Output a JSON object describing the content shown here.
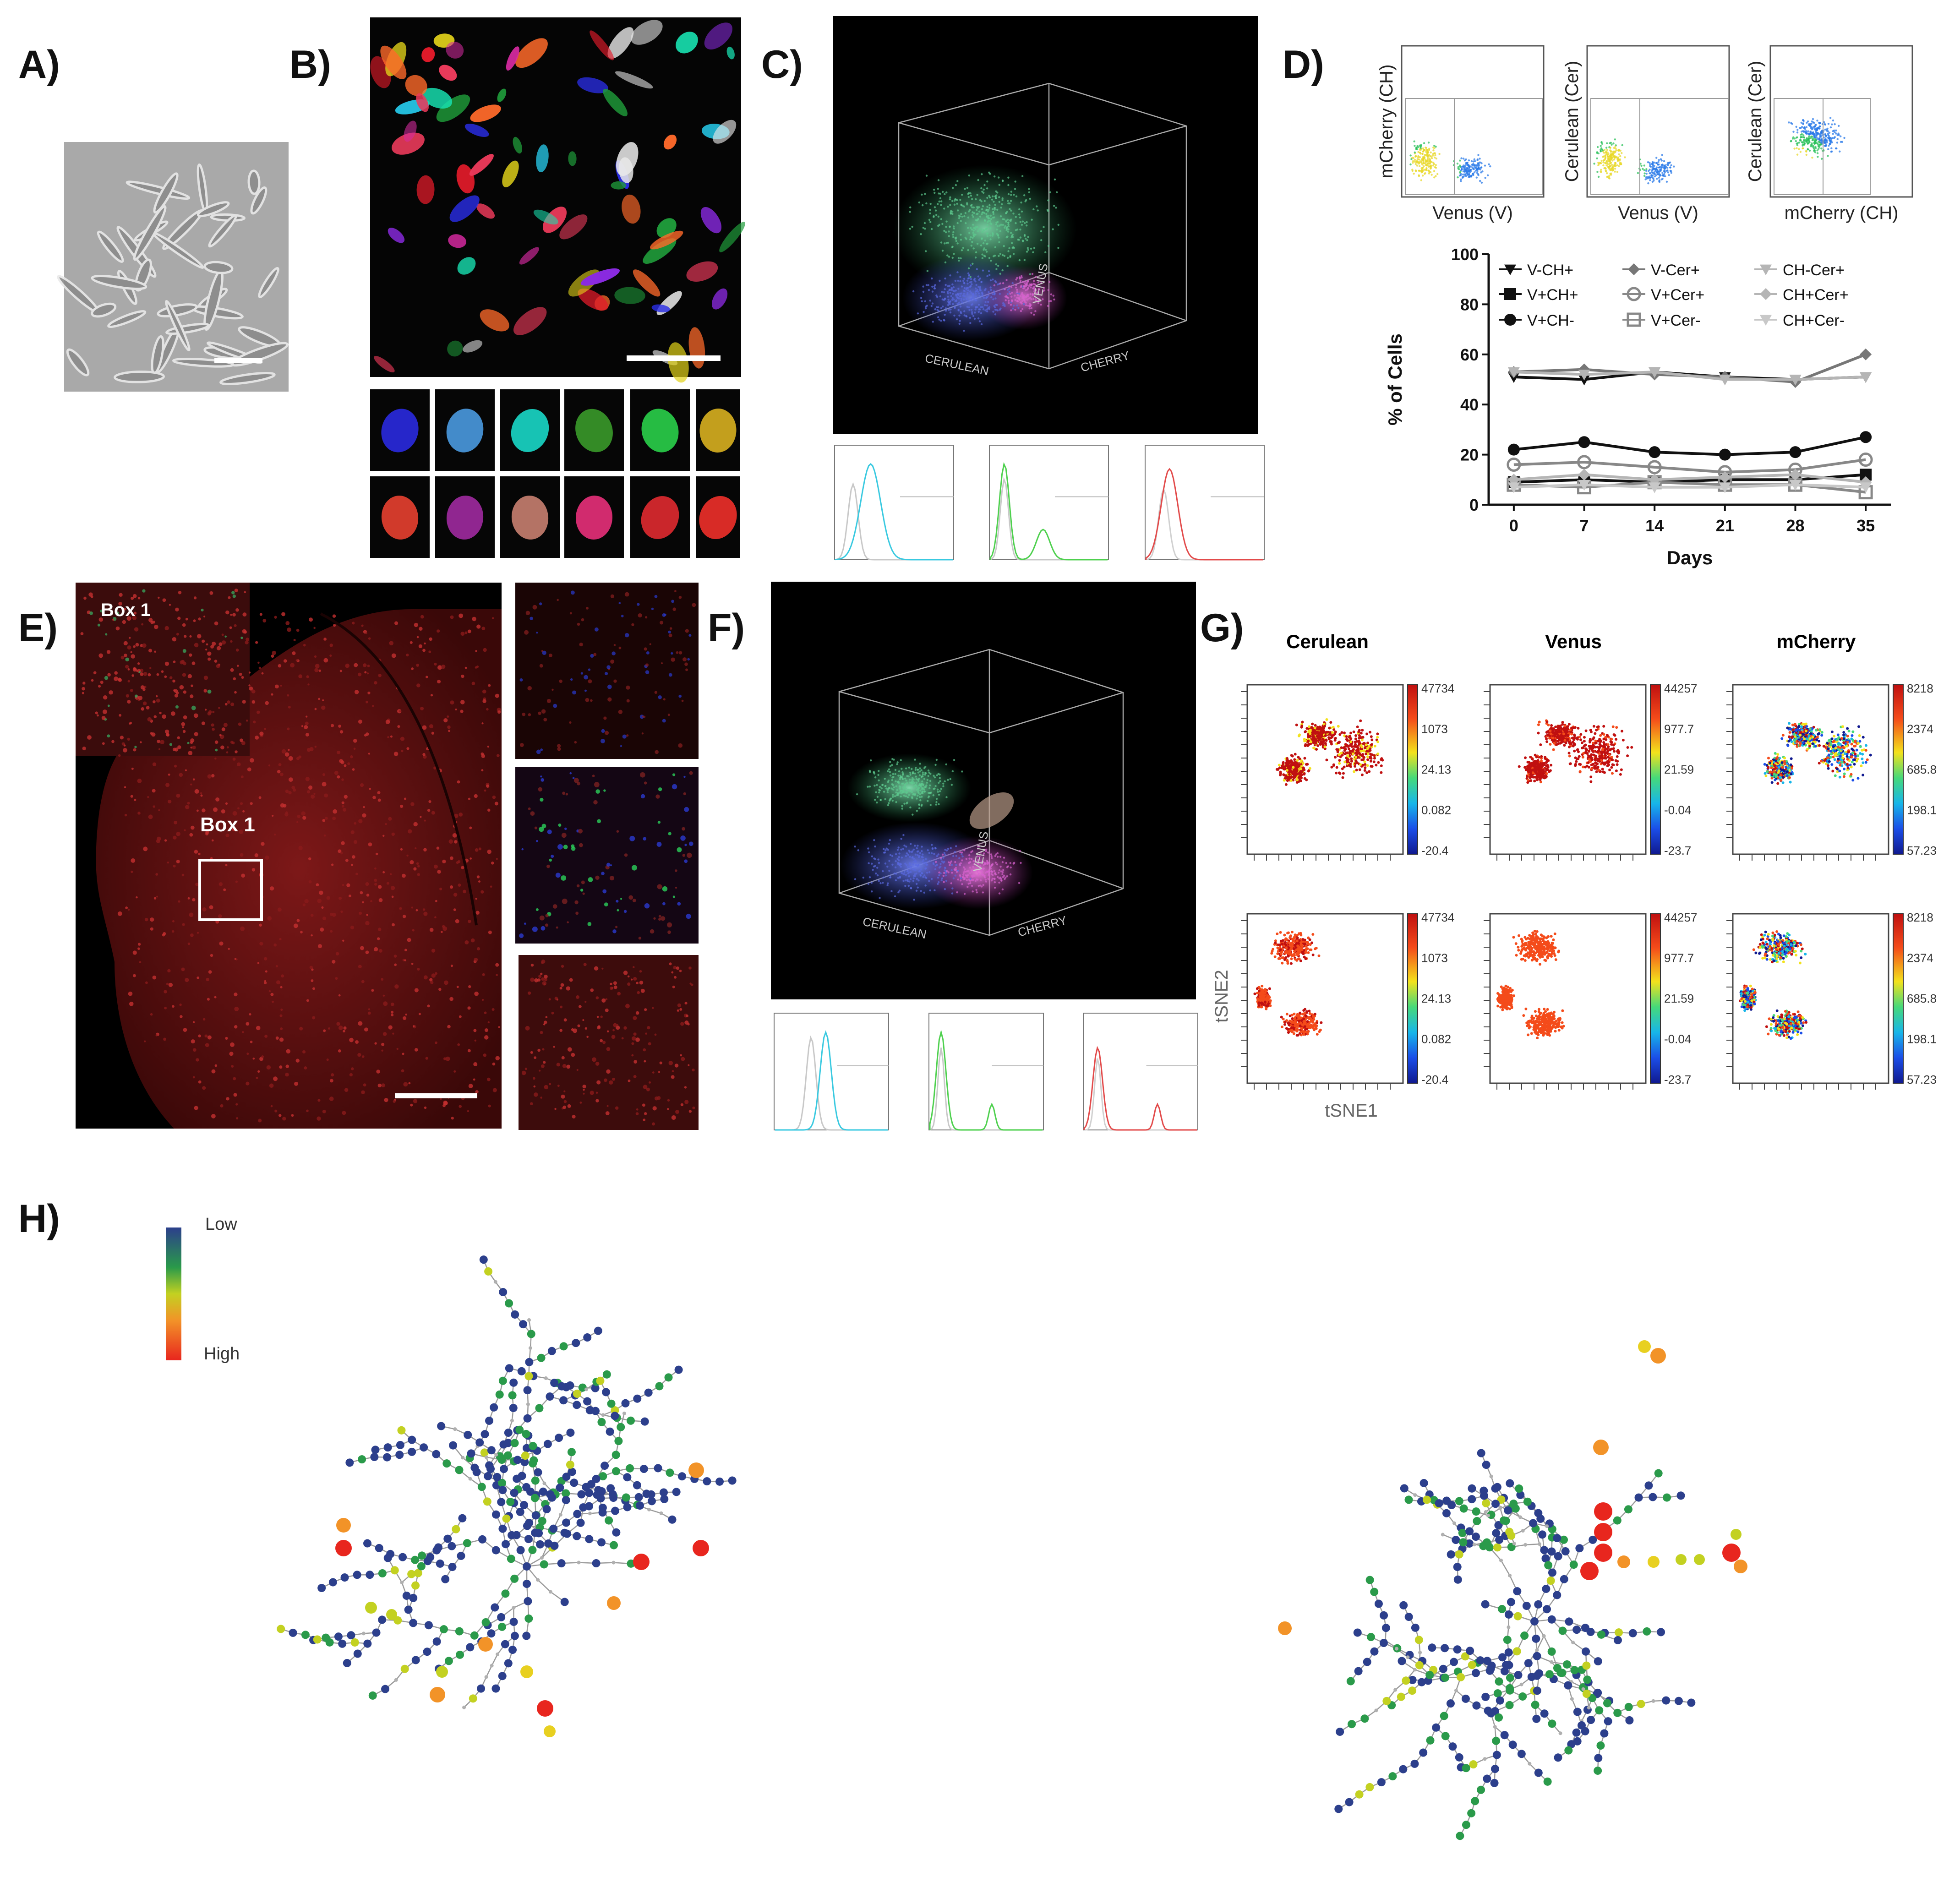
{
  "panel_labels": {
    "a": "A)",
    "b": "B)",
    "c": "C)",
    "d": "D)",
    "e": "E)",
    "f": "F)",
    "g": "G)",
    "h": "H)"
  },
  "panel_c": {
    "axis_cerulean": "CERULEAN",
    "axis_cherry": "CHERRY",
    "axis_venus": "VENUS"
  },
  "panel_f": {
    "axis_cerulean": "CERULEAN",
    "axis_cherry": "CHERRY",
    "axis_venus": "VENUS"
  },
  "panel_d_flow": {
    "plots": [
      {
        "xlabel": "Venus (V)",
        "ylabel": "mCherry (CH)"
      },
      {
        "xlabel": "Venus (V)",
        "ylabel": "Cerulean (Cer)"
      },
      {
        "xlabel": "mCherry (CH)",
        "ylabel": "Cerulean (Cer)"
      }
    ]
  },
  "panel_e": {
    "inset_label": "Box 1",
    "box_label": "Box 1"
  },
  "panel_g": {
    "columns": [
      "Cerulean",
      "Venus",
      "mCherry"
    ],
    "xlabel": "tSNE1",
    "ylabel": "tSNE2",
    "scales": [
      [
        "47734",
        "1073",
        "24.13",
        "0.082",
        "-20.4"
      ],
      [
        "44257",
        "977.7",
        "21.59",
        "-0.04",
        "-23.7"
      ],
      [
        "8218",
        "2374",
        "685.8",
        "198.1",
        "57.23"
      ]
    ]
  },
  "panel_h": {
    "legend_low": "Low",
    "legend_high": "High"
  },
  "colors": {
    "red": "#e8261e",
    "orange": "#f29328",
    "yellow": "#e8d020",
    "green": "#2a9a4a",
    "navy": "#2c3f8c",
    "gray": "#b0b0b0"
  },
  "chart_data": {
    "type": "line",
    "title": "",
    "xlabel": "Days",
    "ylabel": "% of Cells",
    "x": [
      0,
      7,
      14,
      21,
      28,
      35
    ],
    "ylim": [
      0,
      100
    ],
    "yticks": [
      0,
      20,
      40,
      60,
      80,
      100
    ],
    "legend_position": "top",
    "series": [
      {
        "name": "V-CH+",
        "marker": "triangle-down",
        "color": "#111111",
        "values": [
          51,
          50,
          53,
          51,
          50,
          51
        ]
      },
      {
        "name": "V+CH+",
        "marker": "square",
        "color": "#111111",
        "values": [
          9,
          10,
          9,
          10,
          10,
          12
        ]
      },
      {
        "name": "V+CH-",
        "marker": "circle",
        "color": "#111111",
        "values": [
          22,
          25,
          21,
          20,
          21,
          27
        ]
      },
      {
        "name": "V-Cer+",
        "marker": "diamond",
        "color": "#777777",
        "values": [
          53,
          54,
          52,
          51,
          49,
          60
        ]
      },
      {
        "name": "V+Cer+",
        "marker": "open-circle",
        "color": "#888888",
        "values": [
          16,
          17,
          15,
          13,
          14,
          18
        ]
      },
      {
        "name": "V+Cer-",
        "marker": "open-square",
        "color": "#888888",
        "values": [
          8,
          7,
          9,
          8,
          8,
          5
        ]
      },
      {
        "name": "CH-Cer+",
        "marker": "triangle-down",
        "color": "#b5b5b5",
        "values": [
          53,
          52,
          53,
          50,
          50,
          51
        ]
      },
      {
        "name": "CH+Cer+",
        "marker": "diamond",
        "color": "#b5b5b5",
        "values": [
          10,
          12,
          10,
          11,
          12,
          9
        ]
      },
      {
        "name": "CH+Cer-",
        "marker": "triangle-down",
        "color": "#c8c8c8",
        "values": [
          7,
          8,
          7,
          7,
          8,
          7
        ]
      }
    ]
  }
}
